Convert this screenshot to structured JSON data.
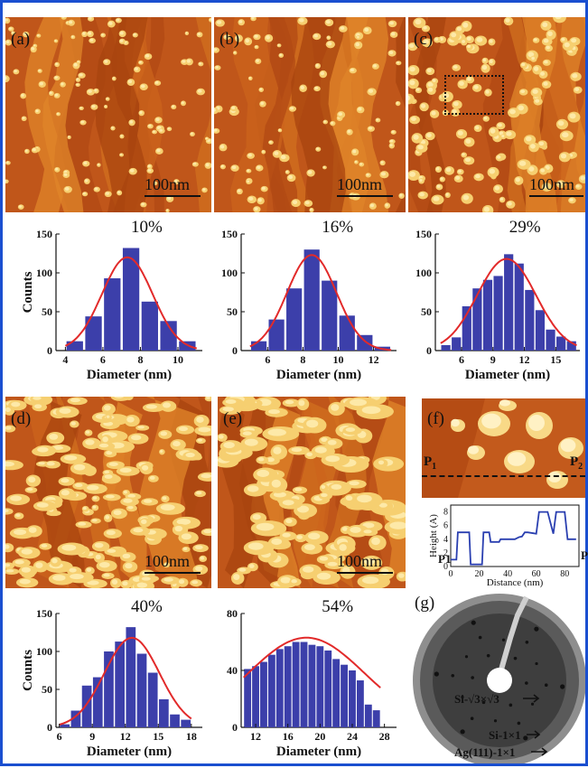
{
  "panels": {
    "a": {
      "label": "(a)",
      "scale": "100nm"
    },
    "b": {
      "label": "(b)",
      "scale": "100nm"
    },
    "c": {
      "label": "(c)",
      "scale": "100nm"
    },
    "d": {
      "label": "(d)",
      "scale": "100nm"
    },
    "e": {
      "label": "(e)",
      "scale": "100nm"
    },
    "f": {
      "label": "(f)",
      "p1": "P",
      "p1sub": "1",
      "p2": "P",
      "p2sub": "2"
    },
    "g": {
      "label": "(g)"
    }
  },
  "leed": {
    "labels": [
      "Si-√3×√3",
      "Si-1×1",
      "Ag(111)-1×1"
    ]
  },
  "colors": {
    "bar": "#3c3faa",
    "fit": "#e22a2a",
    "profile": "#2a3fb0",
    "frame": "#1a4fd0"
  },
  "chart_data": [
    {
      "type": "bar",
      "id": "hist-a",
      "annotation": "10%",
      "xlabel": "Diameter (nm)",
      "ylabel": "Counts",
      "x": [
        4.5,
        5.5,
        6.5,
        7.5,
        8.5,
        9.5,
        10.5
      ],
      "values": [
        12,
        44,
        93,
        132,
        63,
        38,
        12
      ],
      "xlim": [
        3.5,
        11.3
      ],
      "ylim": [
        0,
        150
      ],
      "xticks": [
        4,
        6,
        8,
        10
      ],
      "yticks": [
        0,
        50,
        100,
        150
      ],
      "fit": {
        "mu": 7.3,
        "sigma": 1.35,
        "peak": 120
      }
    },
    {
      "type": "bar",
      "id": "hist-b",
      "annotation": "16%",
      "xlabel": "Diameter (nm)",
      "ylabel": "",
      "x": [
        5.5,
        6.5,
        7.5,
        8.5,
        9.5,
        10.5,
        11.5,
        12.5
      ],
      "values": [
        12,
        40,
        80,
        130,
        90,
        45,
        20,
        5
      ],
      "xlim": [
        4.5,
        13.3
      ],
      "ylim": [
        0,
        150
      ],
      "xticks": [
        6,
        8,
        10,
        12
      ],
      "yticks": [
        0,
        50,
        100,
        150
      ],
      "fit": {
        "mu": 8.5,
        "sigma": 1.4,
        "peak": 123
      }
    },
    {
      "type": "bar",
      "id": "hist-c",
      "annotation": "29%",
      "xlabel": "Diameter (nm)",
      "ylabel": "",
      "x": [
        4.5,
        5.5,
        6.5,
        7.5,
        8.5,
        9.5,
        10.5,
        11.5,
        12.5,
        13.5,
        14.5,
        15.5,
        16.5
      ],
      "values": [
        7,
        17,
        57,
        80,
        91,
        96,
        124,
        112,
        78,
        52,
        27,
        18,
        12
      ],
      "xlim": [
        3.5,
        17.3
      ],
      "ylim": [
        0,
        150
      ],
      "xticks": [
        6,
        9,
        12,
        15
      ],
      "yticks": [
        0,
        50,
        100,
        150
      ],
      "fit": {
        "mu": 10.3,
        "sigma": 2.8,
        "peak": 118
      }
    },
    {
      "type": "bar",
      "id": "hist-d",
      "annotation": "40%",
      "xlabel": "Diameter (nm)",
      "ylabel": "Counts",
      "x": [
        6.5,
        7.5,
        8.5,
        9.5,
        10.5,
        11.5,
        12.5,
        13.5,
        14.5,
        15.5,
        16.5,
        17.5
      ],
      "values": [
        4,
        22,
        55,
        66,
        100,
        113,
        132,
        97,
        72,
        37,
        17,
        10
      ],
      "xlim": [
        5.7,
        19.0
      ],
      "ylim": [
        0,
        150
      ],
      "xticks": [
        6,
        9,
        12,
        15,
        18
      ],
      "yticks": [
        0,
        50,
        100,
        150
      ],
      "fit": {
        "mu": 12.6,
        "sigma": 2.5,
        "peak": 118
      }
    },
    {
      "type": "bar",
      "id": "hist-e",
      "annotation": "54%",
      "xlabel": "Diameter (nm)",
      "ylabel": "",
      "x": [
        11,
        12,
        13,
        14,
        15,
        16,
        17,
        18,
        19,
        20,
        21,
        22,
        23,
        24,
        25,
        26,
        27
      ],
      "values": [
        41,
        43,
        46,
        51,
        55,
        57,
        60,
        60,
        58,
        57,
        54,
        48,
        44,
        40,
        33,
        16,
        12
      ],
      "xlim": [
        10.2,
        29.5
      ],
      "ylim": [
        0,
        80
      ],
      "xticks": [
        12,
        16,
        20,
        24,
        28
      ],
      "yticks": [
        0,
        40,
        80
      ],
      "fit": {
        "mu": 18.3,
        "sigma": 7.2,
        "peak": 63
      }
    },
    {
      "type": "line",
      "id": "profile-f",
      "xlabel": "Distance (nm)",
      "ylabel": "Height (A)",
      "xlim": [
        0,
        90
      ],
      "ylim": [
        0,
        9
      ],
      "xticks": [
        0,
        20,
        40,
        60,
        80
      ],
      "yticks": [
        0,
        2,
        4,
        6,
        8
      ],
      "x": [
        0,
        2,
        4,
        5,
        13,
        14,
        22,
        23,
        27,
        28,
        34,
        35,
        45,
        48,
        50,
        52,
        54,
        60,
        62,
        64,
        68,
        72,
        74,
        76,
        80,
        82,
        84,
        88
      ],
      "y": [
        1,
        1,
        1,
        5,
        5,
        0.3,
        0.3,
        5,
        5,
        3.6,
        3.6,
        4,
        4,
        4.3,
        4.4,
        5,
        5,
        4.8,
        8,
        8,
        8,
        4.8,
        8,
        8,
        8,
        4,
        4,
        4
      ]
    }
  ]
}
